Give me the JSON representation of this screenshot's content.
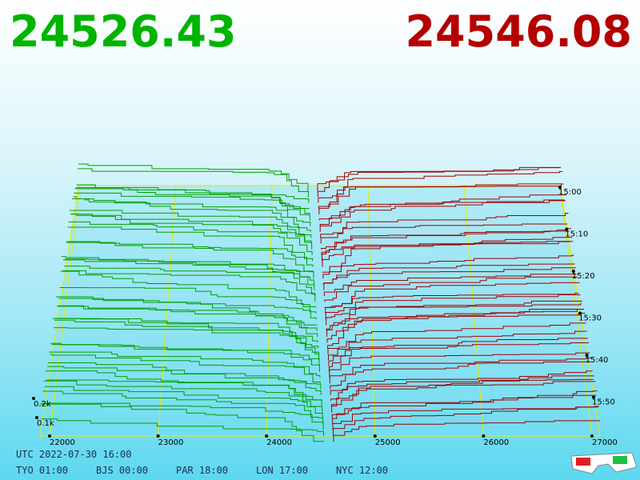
{
  "header": {
    "bid": "24526.43",
    "ask": "24546.08"
  },
  "price_axis": [
    "22000",
    "23000",
    "24000",
    "25000",
    "26000",
    "27000"
  ],
  "time_axis": [
    "15:00",
    "15:10",
    "15:20",
    "15:30",
    "15:40",
    "15:50"
  ],
  "volume_axis": [
    "0.2k",
    "0.1k"
  ],
  "footer": {
    "utc": "UTC 2022-07-30 16:00",
    "clocks": [
      "TYO 01:00",
      "BJS 00:00",
      "PAR 18:00",
      "LON 17:00",
      "NYC 12:00"
    ]
  }
}
